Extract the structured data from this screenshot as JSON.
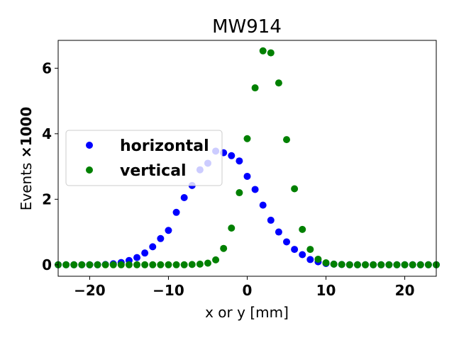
{
  "chart_data": {
    "type": "scatter",
    "title": "MW914",
    "xlabel": "x or y [mm]",
    "ylabel_prefix": "Events ",
    "ylabel_suffix": "×1000",
    "xlim": [
      -24,
      24
    ],
    "ylim": [
      -0.35,
      6.85
    ],
    "xticks": [
      -20,
      -10,
      0,
      10,
      20
    ],
    "xtick_labels": [
      "−20",
      "−10",
      "0",
      "10",
      "20"
    ],
    "yticks": [
      0,
      2,
      4,
      6
    ],
    "ytick_labels": [
      "0",
      "2",
      "4",
      "6"
    ],
    "legend_position": "center-left",
    "series": [
      {
        "name": "horizontal",
        "color": "#0000ff",
        "x": [
          -24,
          -23,
          -22,
          -21,
          -20,
          -19,
          -18,
          -17,
          -16,
          -15,
          -14,
          -13,
          -12,
          -11,
          -10,
          -9,
          -8,
          -7,
          -6,
          -5,
          -4,
          -3,
          -2,
          -1,
          0,
          1,
          2,
          3,
          4,
          5,
          6,
          7,
          8,
          9,
          10,
          11,
          12,
          13,
          14,
          15,
          16,
          17,
          18,
          19,
          20,
          21,
          22,
          23,
          24
        ],
        "y": [
          0,
          0,
          0,
          0,
          0,
          0,
          0.01,
          0.03,
          0.07,
          0.13,
          0.22,
          0.36,
          0.55,
          0.8,
          1.05,
          1.6,
          2.05,
          2.42,
          2.9,
          3.1,
          3.47,
          3.42,
          3.33,
          3.17,
          2.7,
          2.3,
          1.82,
          1.36,
          1.0,
          0.7,
          0.47,
          0.31,
          0.16,
          0.09,
          0.04,
          0.02,
          0.01,
          0,
          0,
          0,
          0,
          0,
          0,
          0,
          0,
          0,
          0,
          0,
          0
        ]
      },
      {
        "name": "vertical",
        "color": "#008000",
        "x": [
          -24,
          -23,
          -22,
          -21,
          -20,
          -19,
          -18,
          -17,
          -16,
          -15,
          -14,
          -13,
          -12,
          -11,
          -10,
          -9,
          -8,
          -7,
          -6,
          -5,
          -4,
          -3,
          -2,
          -1,
          0,
          1,
          2,
          3,
          4,
          5,
          6,
          7,
          8,
          9,
          10,
          11,
          12,
          13,
          14,
          15,
          16,
          17,
          18,
          19,
          20,
          21,
          22,
          23,
          24
        ],
        "y": [
          0,
          0,
          0,
          0,
          0,
          0,
          0,
          0,
          0,
          0,
          0,
          0,
          0,
          0,
          0,
          0,
          0,
          0.01,
          0.02,
          0.05,
          0.15,
          0.5,
          1.12,
          2.2,
          3.85,
          5.4,
          6.53,
          6.47,
          5.55,
          3.82,
          2.32,
          1.08,
          0.47,
          0.17,
          0.06,
          0.02,
          0.01,
          0,
          0,
          0,
          0,
          0,
          0,
          0,
          0,
          0,
          0,
          0,
          0
        ]
      }
    ]
  }
}
